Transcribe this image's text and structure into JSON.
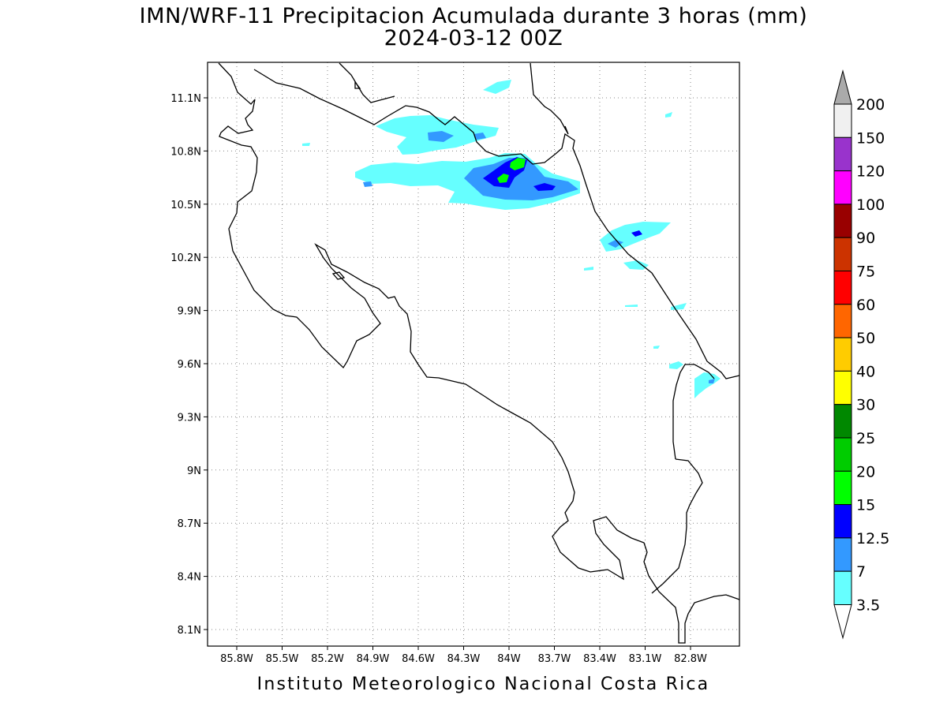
{
  "title": {
    "line1": "IMN/WRF-11 Precipitacion Acumulada durante 3 horas (mm)",
    "line2": "2024-03-12 00Z"
  },
  "footer": "Instituto Meteorologico Nacional Costa Rica",
  "map": {
    "lon_range": [
      -86.0,
      -83.0
    ],
    "lat_range": [
      8.0,
      11.3
    ],
    "lon_range_deg_west": [
      86.0,
      83.0
    ],
    "grid": "dotted",
    "x_tick_labels": [
      "85.8W",
      "85.5W",
      "85.2W",
      "84.9W",
      "84.6W",
      "84.3W",
      "84W",
      "83.7W",
      "83.4W",
      "83.1W",
      "82.8W"
    ],
    "x_tick_values": [
      -85.8,
      -85.5,
      -85.2,
      -84.9,
      -84.6,
      -84.3,
      -84.0,
      -83.7,
      -83.4,
      -83.1,
      -82.8
    ],
    "y_tick_labels": [
      "11.1N",
      "10.8N",
      "10.5N",
      "10.2N",
      "9.9N",
      "9.6N",
      "9.3N",
      "9N",
      "8.7N",
      "8.4N",
      "8.1N"
    ],
    "y_tick_values": [
      11.1,
      10.8,
      10.5,
      10.2,
      9.9,
      9.6,
      9.3,
      9.0,
      8.7,
      8.4,
      8.1
    ],
    "coast_color": "#000000"
  },
  "colorbar": {
    "labels": [
      "3.5",
      "7",
      "12.5",
      "15",
      "20",
      "25",
      "30",
      "40",
      "50",
      "60",
      "75",
      "90",
      "100",
      "120",
      "150",
      "200"
    ],
    "colors": [
      "#66ffff",
      "#3399ff",
      "#0000ff",
      "#00ff00",
      "#00cc00",
      "#008800",
      "#ffff00",
      "#ffcc00",
      "#ff6600",
      "#ff0000",
      "#cc3300",
      "#990000",
      "#ff00ff",
      "#9933cc",
      "#f0f0f0",
      "#aaaaaa"
    ],
    "under_color": "#ffffff",
    "over_color": "#aaaaaa",
    "units": "mm"
  }
}
